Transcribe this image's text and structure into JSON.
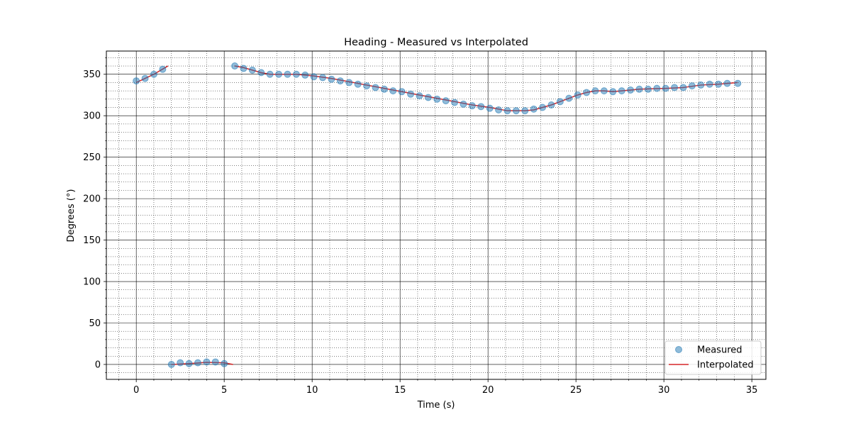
{
  "colors": {
    "measured": "#1f77b4",
    "interpolated": "#d62728"
  },
  "chart_data": {
    "type": "line",
    "title": "Heading - Measured vs Interpolated",
    "xlabel": "Time (s)",
    "ylabel": "Degrees (°)",
    "xlim": [
      -1.7,
      35.8
    ],
    "ylim": [
      -18,
      378
    ],
    "xticks": [
      0,
      5,
      10,
      15,
      20,
      25,
      30,
      35
    ],
    "yticks": [
      0,
      50,
      100,
      150,
      200,
      250,
      300,
      350
    ],
    "x_minor_step": 1,
    "y_minor_step": 10,
    "grid": true,
    "legend_position": "lower right",
    "series": [
      {
        "name": "Measured",
        "kind": "scatter",
        "points": [
          [
            0.0,
            342
          ],
          [
            0.5,
            345
          ],
          [
            1.0,
            350
          ],
          [
            1.5,
            356
          ],
          [
            2.0,
            0
          ],
          [
            2.5,
            2
          ],
          [
            3.0,
            1
          ],
          [
            3.5,
            2
          ],
          [
            4.0,
            3
          ],
          [
            4.5,
            3
          ],
          [
            5.0,
            1
          ],
          [
            5.6,
            360
          ],
          [
            6.1,
            357
          ],
          [
            6.6,
            355
          ],
          [
            7.1,
            352
          ],
          [
            7.6,
            350
          ],
          [
            8.1,
            350
          ],
          [
            8.6,
            350
          ],
          [
            9.1,
            350
          ],
          [
            9.6,
            349
          ],
          [
            10.1,
            347
          ],
          [
            10.6,
            346
          ],
          [
            11.1,
            344
          ],
          [
            11.6,
            342
          ],
          [
            12.1,
            340
          ],
          [
            12.6,
            338
          ],
          [
            13.1,
            336
          ],
          [
            13.6,
            334
          ],
          [
            14.1,
            332
          ],
          [
            14.6,
            330
          ],
          [
            15.1,
            329
          ],
          [
            15.6,
            326
          ],
          [
            16.1,
            324
          ],
          [
            16.6,
            322
          ],
          [
            17.1,
            320
          ],
          [
            17.6,
            318
          ],
          [
            18.1,
            316
          ],
          [
            18.6,
            314
          ],
          [
            19.1,
            312
          ],
          [
            19.6,
            311
          ],
          [
            20.1,
            309
          ],
          [
            20.6,
            307
          ],
          [
            21.1,
            306
          ],
          [
            21.6,
            306
          ],
          [
            22.1,
            306
          ],
          [
            22.6,
            308
          ],
          [
            23.1,
            310
          ],
          [
            23.6,
            313
          ],
          [
            24.1,
            317
          ],
          [
            24.6,
            321
          ],
          [
            25.1,
            325
          ],
          [
            25.6,
            328
          ],
          [
            26.1,
            330
          ],
          [
            26.6,
            330
          ],
          [
            27.1,
            329
          ],
          [
            27.6,
            330
          ],
          [
            28.1,
            331
          ],
          [
            28.6,
            332
          ],
          [
            29.1,
            332
          ],
          [
            29.6,
            333
          ],
          [
            30.1,
            333
          ],
          [
            30.6,
            334
          ],
          [
            31.1,
            334
          ],
          [
            31.6,
            336
          ],
          [
            32.1,
            337
          ],
          [
            32.6,
            338
          ],
          [
            33.1,
            338
          ],
          [
            33.6,
            339
          ],
          [
            34.2,
            339
          ]
        ]
      },
      {
        "name": "Interpolated",
        "kind": "line",
        "segments": [
          [
            [
              0.0,
              340
            ],
            [
              0.5,
              345
            ],
            [
              1.0,
              350
            ],
            [
              1.8,
              360
            ]
          ],
          [
            [
              2.0,
              0
            ],
            [
              3.0,
              1
            ],
            [
              4.0,
              2.5
            ],
            [
              5.0,
              2
            ],
            [
              5.5,
              0
            ]
          ],
          [
            [
              5.6,
              360
            ],
            [
              6.1,
              358
            ],
            [
              7.1,
              352
            ],
            [
              7.6,
              350
            ],
            [
              9.1,
              350
            ],
            [
              10.1,
              348
            ],
            [
              11.1,
              345
            ],
            [
              12.1,
              341
            ],
            [
              13.1,
              337
            ],
            [
              14.1,
              333
            ],
            [
              15.1,
              329
            ],
            [
              16.1,
              325
            ],
            [
              17.1,
              321
            ],
            [
              18.1,
              317
            ],
            [
              19.1,
              313
            ],
            [
              20.1,
              310
            ],
            [
              21.1,
              306
            ],
            [
              22.1,
              306
            ],
            [
              22.6,
              307
            ],
            [
              23.1,
              310
            ],
            [
              23.6,
              313
            ],
            [
              24.1,
              317
            ],
            [
              24.6,
              321
            ],
            [
              25.1,
              325
            ],
            [
              25.6,
              328
            ],
            [
              26.1,
              330
            ],
            [
              26.6,
              330
            ],
            [
              27.1,
              329
            ],
            [
              27.6,
              330
            ],
            [
              28.6,
              332
            ],
            [
              30.1,
              333
            ],
            [
              31.1,
              334
            ],
            [
              32.1,
              337
            ],
            [
              33.1,
              338
            ],
            [
              34.2,
              340
            ]
          ]
        ]
      }
    ]
  }
}
